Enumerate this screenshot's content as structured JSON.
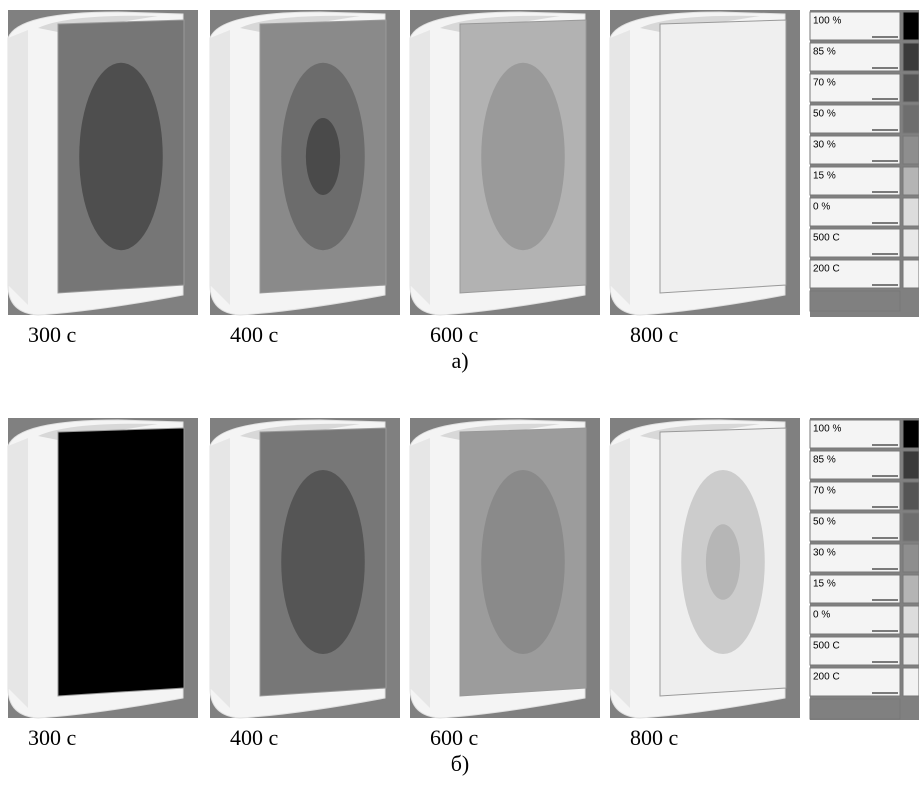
{
  "rows": [
    {
      "label": "а)",
      "panels": [
        {
          "caption": "300 с",
          "zones": [
            "#767676",
            "#4e4e4e"
          ]
        },
        {
          "caption": "400 с",
          "zones": [
            "#8a8a8a",
            "#6c6c6c",
            "#4a4a4a"
          ]
        },
        {
          "caption": "600 с",
          "zones": [
            "#b2b2b2",
            "#9a9a9a"
          ]
        },
        {
          "caption": "800 с",
          "zones": [
            "#efefef"
          ]
        }
      ],
      "legend": [
        {
          "label": "100 %",
          "color": "#000000"
        },
        {
          "label": "85 %",
          "color": "#3a3a3a"
        },
        {
          "label": "70 %",
          "color": "#555555"
        },
        {
          "label": "50 %",
          "color": "#6e6e6e"
        },
        {
          "label": "30 %",
          "color": "#8e8e8e"
        },
        {
          "label": "15 %",
          "color": "#b4b4b4"
        },
        {
          "label": "0 %",
          "color": "#dcdcdc"
        },
        {
          "label": "500 С",
          "color": "#e8e8e8"
        },
        {
          "label": "200 С",
          "color": "#f2f2f2"
        }
      ]
    },
    {
      "label": "б)",
      "panels": [
        {
          "caption": "300 с",
          "zones": [
            "#000000"
          ]
        },
        {
          "caption": "400 с",
          "zones": [
            "#777777",
            "#555555"
          ]
        },
        {
          "caption": "600 с",
          "zones": [
            "#9c9c9c",
            "#8a8a8a"
          ]
        },
        {
          "caption": "800 с",
          "zones": [
            "#eeeeee",
            "#cccccc",
            "#b6b6b6"
          ]
        }
      ],
      "legend": [
        {
          "label": "100 %",
          "color": "#000000"
        },
        {
          "label": "85 %",
          "color": "#3a3a3a"
        },
        {
          "label": "70 %",
          "color": "#555555"
        },
        {
          "label": "50 %",
          "color": "#6e6e6e"
        },
        {
          "label": "30 %",
          "color": "#8e8e8e"
        },
        {
          "label": "15 %",
          "color": "#b4b4b4"
        },
        {
          "label": "0 %",
          "color": "#dcdcdc"
        },
        {
          "label": "500 С",
          "color": "#e8e8e8"
        },
        {
          "label": "200 С",
          "color": "#f2f2f2"
        }
      ]
    }
  ]
}
